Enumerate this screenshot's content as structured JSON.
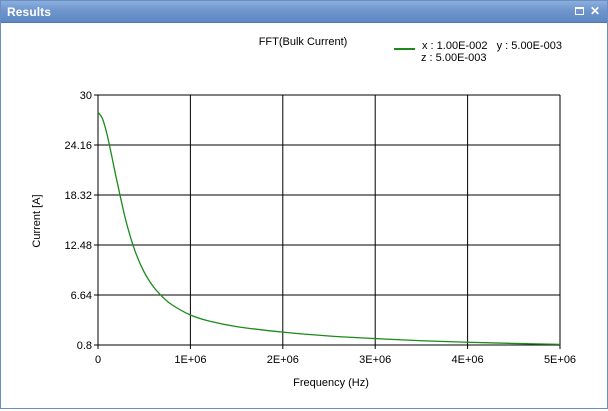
{
  "window": {
    "title": "Results",
    "buttons": {
      "maximize_icon": "maximize-icon",
      "close_icon": "close-icon"
    }
  },
  "chart_data": {
    "type": "line",
    "title": "FFT(Bulk Current)",
    "xlabel": "Frequency (Hz)",
    "ylabel": "Current [A]",
    "xlim": [
      0,
      5000000
    ],
    "ylim": [
      0.8,
      30
    ],
    "x_ticks": [
      "0",
      "1E+06",
      "2E+06",
      "3E+06",
      "4E+06",
      "5E+06"
    ],
    "y_ticks": [
      "30",
      "24.16",
      "18.32",
      "12.48",
      "6.64",
      "0.8"
    ],
    "grid": true,
    "legend_position": "top-right",
    "series": [
      {
        "name": "x : 1.00E-002   y : 5.00E-003",
        "name_line2": "z : 5.00E-003",
        "color": "#1a8a1a",
        "x": [
          0,
          50000,
          100000,
          150000,
          200000,
          300000,
          400000,
          500000,
          600000,
          700000,
          800000,
          1000000,
          1200000,
          1500000,
          2000000,
          2500000,
          3000000,
          3500000,
          4000000,
          4500000,
          5000000
        ],
        "values": [
          28.0,
          27.2,
          25.3,
          22.8,
          20.2,
          15.4,
          11.8,
          9.3,
          7.6,
          6.4,
          5.5,
          4.3,
          3.6,
          2.95,
          2.3,
          1.85,
          1.55,
          1.3,
          1.12,
          0.98,
          0.87
        ]
      }
    ]
  }
}
